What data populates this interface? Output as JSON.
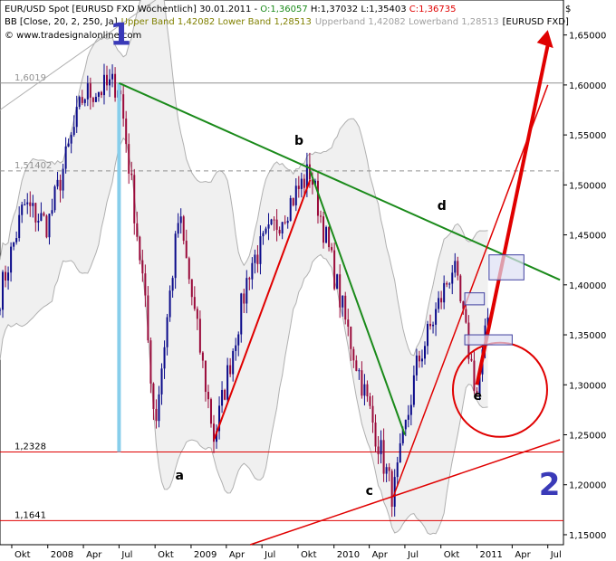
{
  "header": {
    "line1_symbol": "EUR/USD Spot [EURUSD FXD  Wöchentlich] 30.01.2011 - ",
    "line1_o": "O:1,36057",
    "line1_hl": " H:1,37032 L:1,35403 ",
    "line1_c": "C:1,36735",
    "line2_bb": "BB [Close, 20, 2, 250, Ja]",
    "line2_bands": "Upper Band 1,42082 Lower Band 1,28513",
    "line2_overlay": "Upperband 1,42082 Lowerband 1,28513",
    "line2_sym": "[EURUSD FXD]",
    "line3_copy": "© www.tradesignalonline.com",
    "currency": "$"
  },
  "colors": {
    "price_up": "#0a0a8a",
    "price_down": "#9a0a3a",
    "band": "#b0b0b0",
    "band_fill": "#f0f0f0",
    "green_trend": "#1a8a1a",
    "red_trend": "#e00000",
    "support": "#e00000",
    "wave1_marker": "#87ceeb",
    "wave_numbers": "#3a3ab8",
    "box_fill": "#dde0f3",
    "box_stroke": "#4040a0",
    "header_green": "#1a8a1a",
    "header_red": "#e00000",
    "header_olive": "#808000"
  },
  "chart_data": {
    "type": "candlestick",
    "title": "EUR/USD Spot [EURUSD FXD  Wöchentlich]",
    "x_ticks": [
      "Okt",
      "2008",
      "Apr",
      "Jul",
      "Okt",
      "2009",
      "Apr",
      "Jul",
      "Okt",
      "2010",
      "Apr",
      "Jul",
      "Okt",
      "2011",
      "Apr",
      "Jul"
    ],
    "y_ticks": [
      "1,65000",
      "1,60000",
      "1,55000",
      "1,50000",
      "1,45000",
      "1,40000",
      "1,35000",
      "1,30000",
      "1,25000",
      "1,20000",
      "1,15000"
    ],
    "y_range": [
      1.14,
      1.685
    ],
    "levels": [
      {
        "label": "1,6019",
        "value": 1.6019,
        "style": "solid-gray"
      },
      {
        "label": "1,51402",
        "value": 1.51402,
        "style": "dashed-gray"
      },
      {
        "label": "1,2328",
        "value": 1.2328,
        "style": "solid-red"
      },
      {
        "label": "1,1641",
        "value": 1.1641,
        "style": "solid-red"
      }
    ],
    "pivots": [
      {
        "date": "2007-09",
        "price": 1.39
      },
      {
        "date": "2007-11",
        "price": 1.48
      },
      {
        "date": "2008-01",
        "price": 1.46
      },
      {
        "date": "2008-04",
        "price": 1.59
      },
      {
        "date": "2008-07",
        "price": 1.6019
      },
      {
        "date": "2008-09",
        "price": 1.4
      },
      {
        "date": "2008-10",
        "price": 1.26
      },
      {
        "date": "2008-12",
        "price": 1.47
      },
      {
        "date": "2009-03",
        "price": 1.2456
      },
      {
        "date": "2009-06",
        "price": 1.42
      },
      {
        "date": "2009-11",
        "price": 1.51402
      },
      {
        "date": "2010-02",
        "price": 1.36
      },
      {
        "date": "2010-06",
        "price": 1.1876
      },
      {
        "date": "2010-08",
        "price": 1.32
      },
      {
        "date": "2010-11",
        "price": 1.42
      },
      {
        "date": "2011-01",
        "price": 1.29
      },
      {
        "date": "2011-01-30",
        "price": 1.36735
      }
    ],
    "annotations": {
      "wave_labels": [
        {
          "text": "1",
          "date": "2008-07",
          "price": 1.64
        },
        {
          "text": "a",
          "date": "2008-12",
          "price": 1.205
        },
        {
          "text": "b",
          "date": "2009-10",
          "price": 1.54
        },
        {
          "text": "c",
          "date": "2010-04",
          "price": 1.19
        },
        {
          "text": "d",
          "date": "2010-10",
          "price": 1.475
        },
        {
          "text": "e",
          "date": "2011-01",
          "price": 1.285
        },
        {
          "text": "2",
          "date": "2011-07",
          "price": 1.19
        }
      ]
    }
  }
}
